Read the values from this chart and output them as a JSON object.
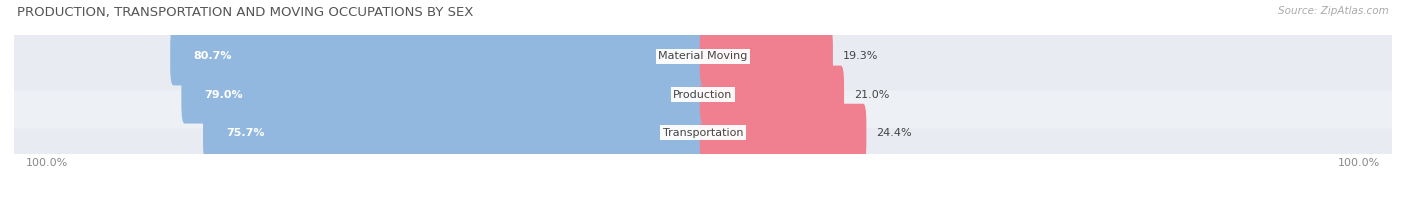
{
  "title": "PRODUCTION, TRANSPORTATION AND MOVING OCCUPATIONS BY SEX",
  "source": "Source: ZipAtlas.com",
  "categories": [
    "Transportation",
    "Production",
    "Material Moving"
  ],
  "male_values": [
    75.7,
    79.0,
    80.7
  ],
  "female_values": [
    24.4,
    21.0,
    19.3
  ],
  "male_color": "#92b8e0",
  "female_color": "#f08090",
  "row_bg_colors": [
    "#e8ecf2",
    "#edf1f6",
    "#e8ecf2"
  ],
  "label_color": "#444444",
  "title_color": "#555555",
  "source_color": "#aaaaaa",
  "axis_label_color": "#888888",
  "figsize": [
    14.06,
    1.97
  ],
  "dpi": 100
}
